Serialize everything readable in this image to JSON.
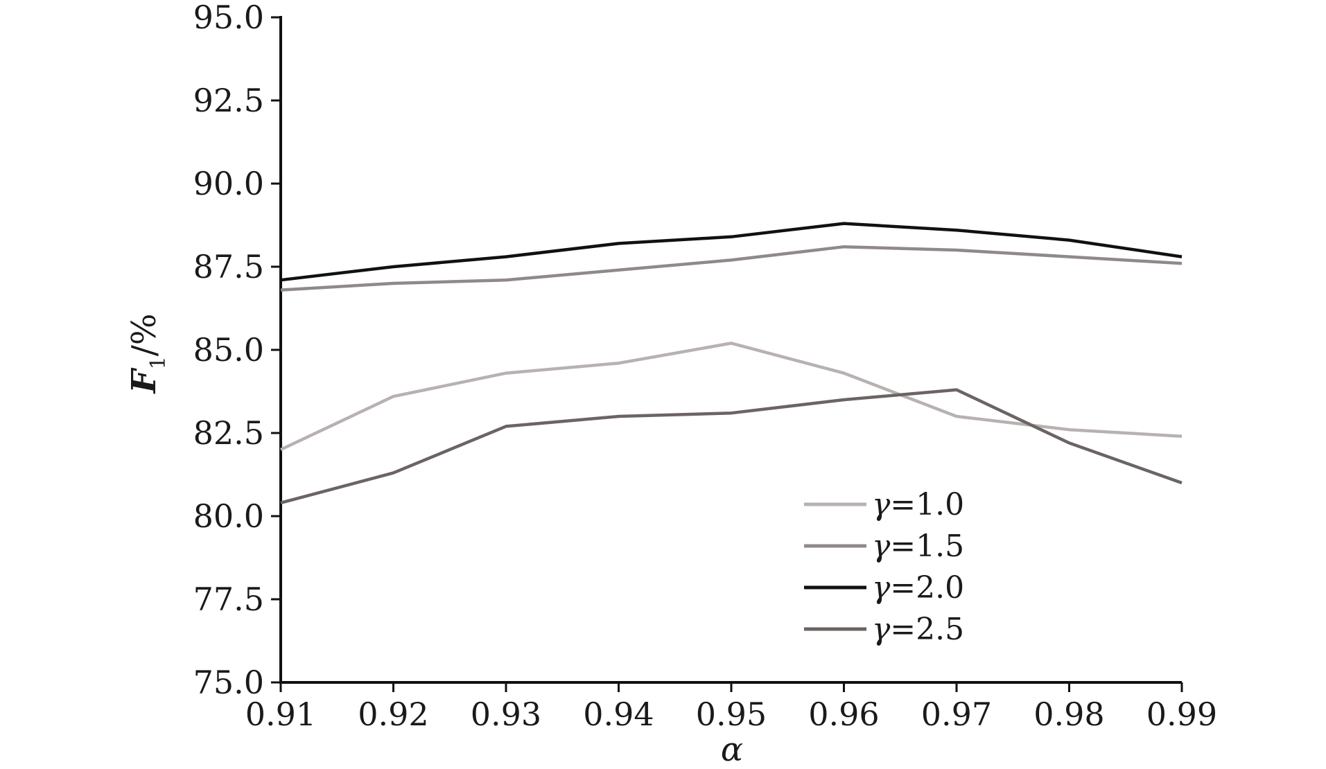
{
  "chart_data": {
    "type": "line",
    "x": [
      0.91,
      0.92,
      0.93,
      0.94,
      0.95,
      0.96,
      0.97,
      0.98,
      0.99
    ],
    "x_tick_labels": [
      "0.91",
      "0.92",
      "0.93",
      "0.94",
      "0.95",
      "0.96",
      "0.97",
      "0.98",
      "0.99"
    ],
    "xlim": [
      0.91,
      0.99
    ],
    "y_ticks": [
      75.0,
      77.5,
      80.0,
      82.5,
      85.0,
      87.5,
      90.0,
      92.5,
      95.0
    ],
    "y_tick_labels": [
      "75.0",
      "77.5",
      "80.0",
      "82.5",
      "85.0",
      "87.5",
      "90.0",
      "92.5",
      "95.0"
    ],
    "ylim": [
      75.0,
      95.0
    ],
    "xlabel": "α",
    "ylabel_main": "F",
    "ylabel_sub": "1",
    "ylabel_suffix": "/%",
    "grid": false,
    "legend_position": "bottom-right",
    "series": [
      {
        "name": "γ=1.0",
        "name_symbol": "γ",
        "name_rest": "=1.0",
        "color": "#b7b2b0",
        "values": [
          82.0,
          83.6,
          84.3,
          84.6,
          85.2,
          84.3,
          83.0,
          82.6,
          82.4
        ]
      },
      {
        "name": "γ=1.5",
        "name_symbol": "γ",
        "name_rest": "=1.5",
        "color": "#8f8a88",
        "values": [
          86.8,
          87.0,
          87.1,
          87.4,
          87.7,
          88.1,
          88.0,
          87.8,
          87.6
        ]
      },
      {
        "name": "γ=2.0",
        "name_symbol": "γ",
        "name_rest": "=2.0",
        "color": "#111111",
        "values": [
          87.1,
          87.5,
          87.8,
          88.2,
          88.4,
          88.8,
          88.6,
          88.3,
          87.8
        ]
      },
      {
        "name": "γ=2.5",
        "name_symbol": "γ",
        "name_rest": "=2.5",
        "color": "#6b6462",
        "values": [
          80.4,
          81.3,
          82.7,
          83.0,
          83.1,
          83.5,
          83.8,
          82.2,
          81.0
        ]
      }
    ]
  }
}
